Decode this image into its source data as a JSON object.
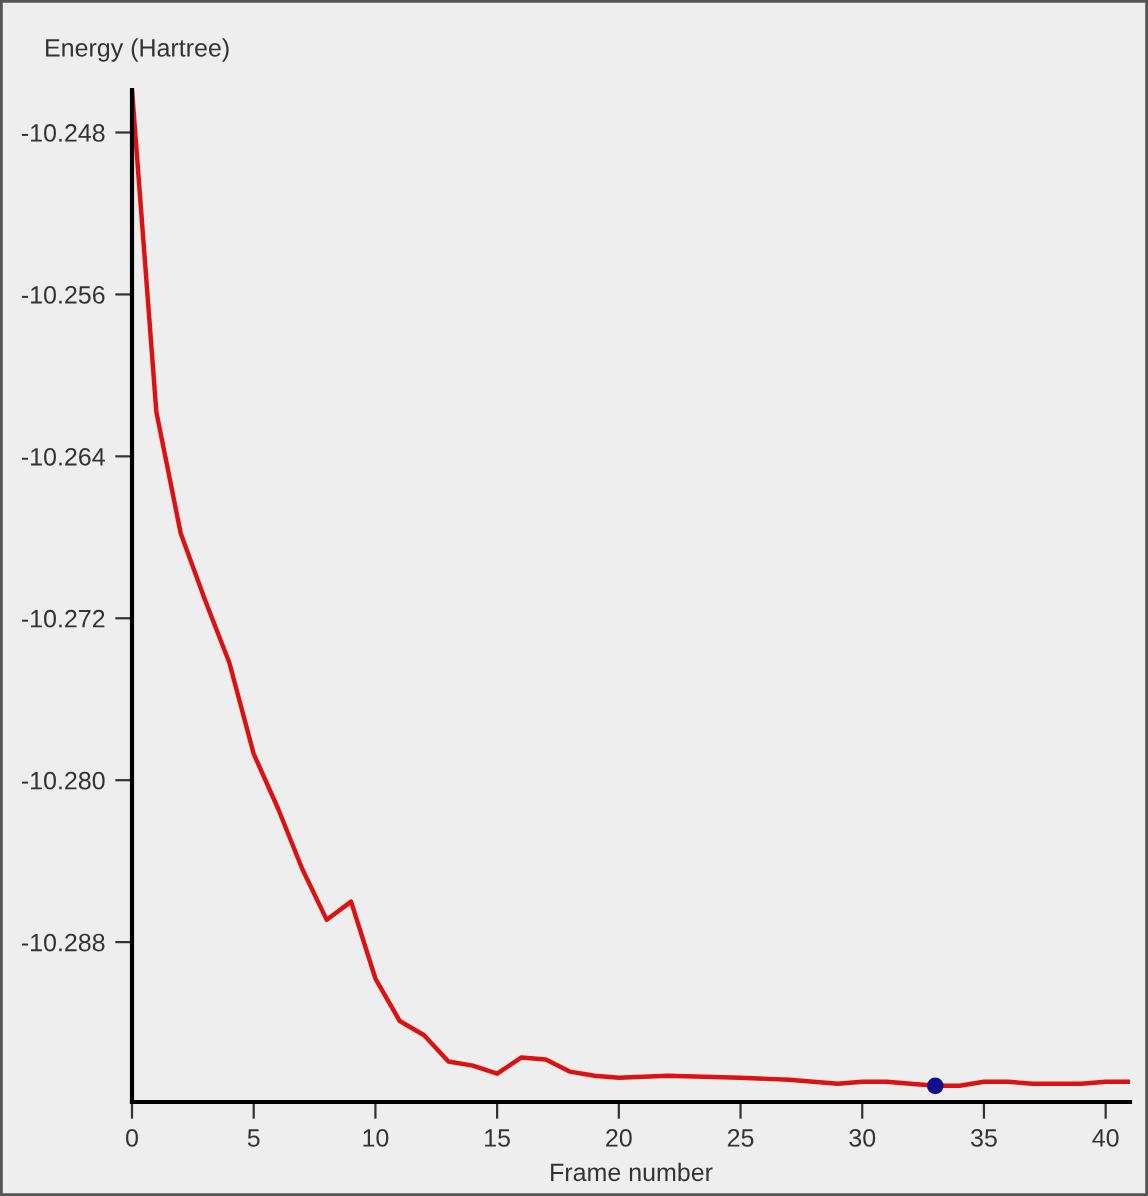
{
  "chart_data": {
    "type": "line",
    "xlabel": "Frame number",
    "ylabel": "Energy (Hartree)",
    "xlim": [
      0,
      41
    ],
    "xticks": [
      0,
      5,
      10,
      15,
      20,
      25,
      30,
      35,
      40
    ],
    "ylim": [
      -10.2959,
      -10.2459
    ],
    "yticks": [
      -10.248,
      -10.256,
      -10.264,
      -10.272,
      {
        "value": -10.28,
        "label": "-10.280"
      },
      -10.288
    ],
    "grid": false,
    "marker": "none",
    "line_style": "solid",
    "series": [
      {
        "color": "#dd1111",
        "x": [
          0,
          1,
          2,
          3,
          4,
          5,
          6,
          7,
          8,
          9,
          10,
          11,
          12,
          13,
          14,
          15,
          16,
          17,
          18,
          19,
          20,
          22,
          25,
          27,
          29,
          30,
          31,
          32,
          33,
          34,
          35,
          36,
          37,
          38,
          39,
          40,
          41
        ],
        "values": [
          -10.2459,
          -10.2618,
          -10.2678,
          -10.2711,
          -10.2742,
          -10.2787,
          -10.2814,
          -10.2844,
          -10.2869,
          -10.286,
          -10.2898,
          -10.2919,
          -10.2926,
          -10.2939,
          -10.2941,
          -10.2945,
          -10.2937,
          -10.2938,
          -10.2944,
          -10.2946,
          -10.2947,
          -10.2946,
          -10.2947,
          -10.2948,
          -10.295,
          -10.2949,
          -10.2949,
          -10.295,
          -10.2951,
          -10.2951,
          -10.2949,
          -10.2949,
          -10.295,
          -10.295,
          -10.295,
          -10.2949,
          -10.2949
        ]
      },
      {
        "type": "scatter",
        "color": "#10108a",
        "marker": "circle",
        "x": [
          33
        ],
        "values": [
          -10.2951
        ]
      }
    ]
  }
}
